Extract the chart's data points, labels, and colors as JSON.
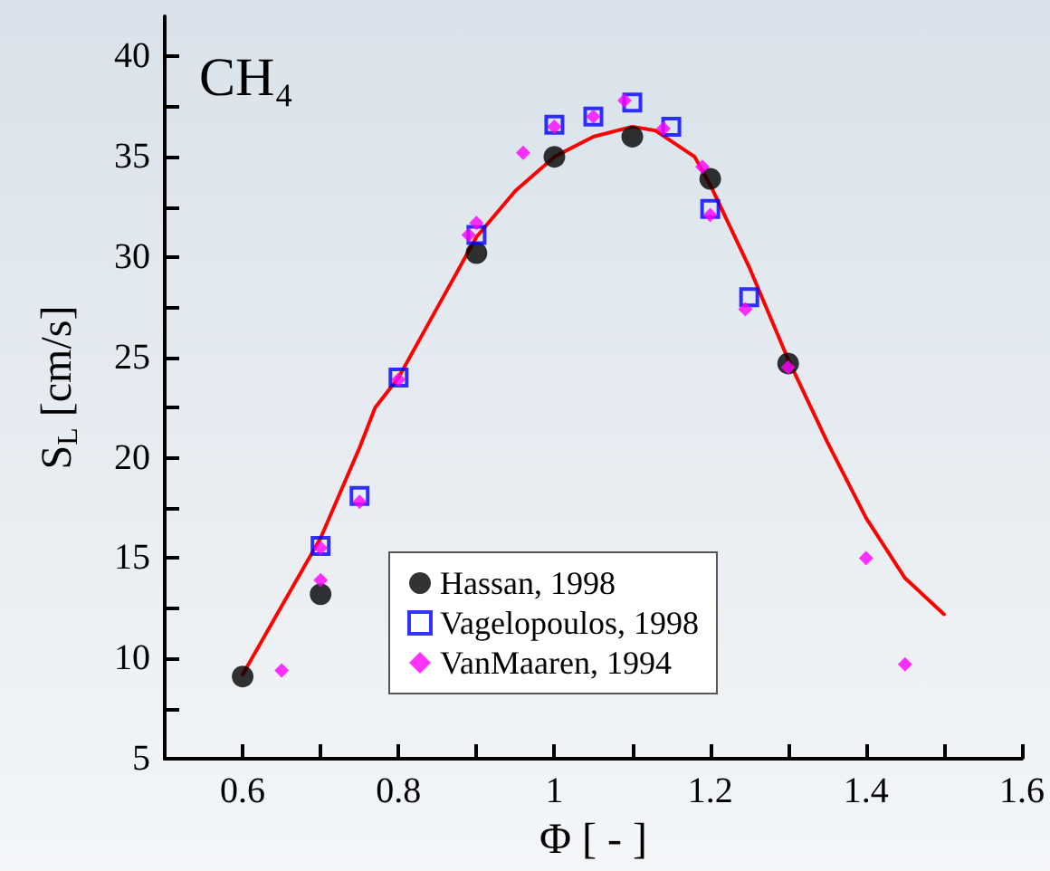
{
  "chart_data": {
    "type": "scatter",
    "xlabel": "Φ [ - ]",
    "ylabel": "S$_{L}$ [cm/s]",
    "annotations": [
      "CH₄"
    ],
    "xlim": [
      0.5,
      1.6
    ],
    "ylim": [
      5,
      42
    ],
    "xticks": [
      {
        "value": 0.5,
        "label": null
      },
      0.6,
      {
        "value": 0.7,
        "label": null
      },
      0.8,
      {
        "value": 0.9,
        "label": null
      },
      1,
      {
        "value": 1.1,
        "label": null
      },
      1.2,
      {
        "value": 1.3,
        "label": null
      },
      1.4,
      {
        "value": 1.5,
        "label": null
      },
      1.6
    ],
    "yticks": [
      5,
      {
        "value": 7.5,
        "label": null
      },
      10,
      {
        "value": 12.5,
        "label": null
      },
      15,
      {
        "value": 17.5,
        "label": null
      },
      20,
      {
        "value": 22.5,
        "label": null
      },
      25,
      {
        "value": 27.5,
        "label": null
      },
      30,
      {
        "value": 32.5,
        "label": null
      },
      35,
      {
        "value": 37.5,
        "label": null
      },
      40
    ],
    "grid": false,
    "legend": "bottom",
    "series": [
      {
        "type": "line",
        "color": "#ff0000",
        "marker": "none",
        "line_style": "solid",
        "x": [
          0.6,
          0.65,
          0.7,
          0.75,
          0.77,
          0.8,
          0.85,
          0.9,
          0.95,
          1.0,
          1.05,
          1.1,
          1.13,
          1.18,
          1.2,
          1.25,
          1.3,
          1.35,
          1.4,
          1.45,
          1.5
        ],
        "values": [
          9.2,
          12.6,
          16,
          20.5,
          22.5,
          24,
          27.5,
          31,
          33.3,
          35,
          36,
          36.5,
          36.3,
          35,
          33.6,
          29.5,
          24.9,
          20.8,
          17,
          14,
          12.2
        ]
      },
      {
        "name": "Hassan, 1998",
        "color": "#000000",
        "marker": "circle",
        "x": [
          0.6,
          0.7,
          0.9,
          1.0,
          1.1,
          1.2,
          1.3
        ],
        "values": [
          9.1,
          13.2,
          30.2,
          35.0,
          36.0,
          33.9,
          24.7
        ]
      },
      {
        "name": "Vagelopoulos, 1998",
        "color": "#0000ff",
        "marker": "square",
        "x": [
          0.7,
          0.75,
          0.8,
          0.9,
          1.0,
          1.05,
          1.1,
          1.15,
          1.2,
          1.25
        ],
        "values": [
          15.6,
          18.1,
          24.0,
          31.1,
          36.6,
          37.0,
          37.7,
          36.5,
          32.4,
          28.0
        ]
      },
      {
        "name": "VanMaaren, 1994",
        "color": "#ff00ff",
        "marker": "diamond",
        "x": [
          0.65,
          0.7,
          0.7,
          0.75,
          0.8,
          0.89,
          0.9,
          0.96,
          1.0,
          1.05,
          1.09,
          1.14,
          1.19,
          1.2,
          1.245,
          1.3,
          1.4,
          1.45
        ],
        "values": [
          9.4,
          13.9,
          15.5,
          17.8,
          23.9,
          31.1,
          31.7,
          35.2,
          36.5,
          37.0,
          37.8,
          36.4,
          34.5,
          32.1,
          27.4,
          24.5,
          15.0,
          9.7
        ]
      }
    ]
  }
}
